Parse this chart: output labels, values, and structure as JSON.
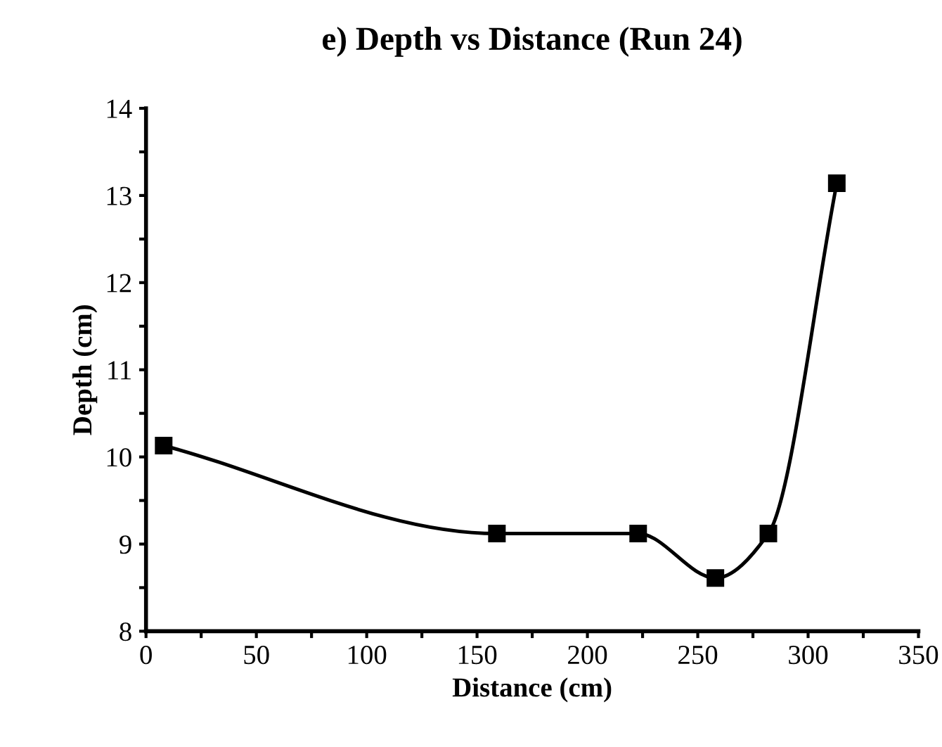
{
  "chart_data": {
    "type": "line",
    "title": "e) Depth vs Distance (Run 24)",
    "xlabel": "Distance (cm)",
    "ylabel": "Depth (cm)",
    "x": [
      8,
      159,
      223,
      258,
      282,
      313
    ],
    "series": [
      {
        "color": "#000000",
        "values": [
          10.13,
          9.12,
          9.12,
          8.61,
          9.12,
          13.14
        ]
      }
    ],
    "marker": "square",
    "line_style": "solid",
    "grid": false,
    "legend": false,
    "xlim": [
      0,
      350
    ],
    "ylim": [
      8,
      14
    ],
    "xticks": [
      0,
      {
        "value": 25,
        "label": null
      },
      50,
      {
        "value": 75,
        "label": null
      },
      100,
      {
        "value": 125,
        "label": null
      },
      150,
      {
        "value": 175,
        "label": null
      },
      200,
      {
        "value": 225,
        "label": null
      },
      250,
      {
        "value": 275,
        "label": null
      },
      300,
      {
        "value": 325,
        "label": null
      },
      350
    ],
    "yticks": [
      8,
      {
        "value": 8.5,
        "label": null
      },
      9,
      {
        "value": 9.5,
        "label": null
      },
      10,
      {
        "value": 10.5,
        "label": null
      },
      11,
      {
        "value": 11.5,
        "label": null
      },
      12,
      {
        "value": 12.5,
        "label": null
      },
      13,
      {
        "value": 13.5,
        "label": null
      },
      14
    ]
  }
}
